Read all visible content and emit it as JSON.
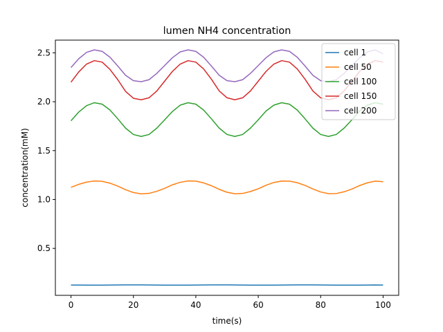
{
  "chart_data": {
    "type": "line",
    "title": "lumen NH4 concentration",
    "xlabel": "time(s)",
    "ylabel": "concentration(mM)",
    "xlim": [
      -5,
      105
    ],
    "ylim": [
      0.02,
      2.63
    ],
    "xticks": [
      0,
      20,
      40,
      60,
      80,
      100
    ],
    "yticks": [
      0.5,
      1.0,
      1.5,
      2.0,
      2.5
    ],
    "xtick_labels": [
      "0",
      "20",
      "40",
      "60",
      "80",
      "100"
    ],
    "ytick_labels": [
      "0.5",
      "1.0",
      "1.5",
      "2.0",
      "2.5"
    ],
    "grid": false,
    "legend_position": "top-right",
    "x": [
      0,
      2.5,
      5,
      7.5,
      10,
      12.5,
      15,
      17.5,
      20,
      22.5,
      25,
      27.5,
      30,
      32.5,
      35,
      37.5,
      40,
      42.5,
      45,
      47.5,
      50,
      52.5,
      55,
      57.5,
      60,
      62.5,
      65,
      67.5,
      70,
      72.5,
      75,
      77.5,
      80,
      82.5,
      85,
      87.5,
      90,
      92.5,
      95,
      97.5,
      100
    ],
    "series": [
      {
        "name": "cell 1",
        "color": "#1f77b4",
        "values": [
          0.125,
          0.125,
          0.124,
          0.124,
          0.124,
          0.125,
          0.126,
          0.127,
          0.127,
          0.127,
          0.126,
          0.125,
          0.124,
          0.124,
          0.124,
          0.124,
          0.125,
          0.126,
          0.127,
          0.127,
          0.127,
          0.126,
          0.125,
          0.124,
          0.124,
          0.124,
          0.124,
          0.125,
          0.126,
          0.127,
          0.127,
          0.127,
          0.126,
          0.125,
          0.124,
          0.124,
          0.124,
          0.124,
          0.125,
          0.126,
          0.125
        ]
      },
      {
        "name": "cell 50",
        "color": "#ff7f0e",
        "values": [
          1.125,
          1.155,
          1.178,
          1.19,
          1.186,
          1.167,
          1.137,
          1.1,
          1.071,
          1.058,
          1.063,
          1.084,
          1.114,
          1.15,
          1.176,
          1.19,
          1.188,
          1.17,
          1.141,
          1.104,
          1.074,
          1.059,
          1.062,
          1.082,
          1.11,
          1.146,
          1.174,
          1.189,
          1.188,
          1.172,
          1.144,
          1.108,
          1.077,
          1.06,
          1.061,
          1.079,
          1.107,
          1.143,
          1.171,
          1.188,
          1.182
        ]
      },
      {
        "name": "cell 100",
        "color": "#2ca02c",
        "values": [
          1.805,
          1.895,
          1.96,
          1.99,
          1.975,
          1.915,
          1.825,
          1.73,
          1.665,
          1.645,
          1.665,
          1.73,
          1.815,
          1.9,
          1.965,
          1.99,
          1.975,
          1.915,
          1.825,
          1.73,
          1.665,
          1.645,
          1.665,
          1.73,
          1.815,
          1.905,
          1.965,
          1.99,
          1.975,
          1.915,
          1.825,
          1.73,
          1.665,
          1.645,
          1.665,
          1.73,
          1.815,
          1.905,
          1.965,
          1.99,
          1.975
        ]
      },
      {
        "name": "cell 150",
        "color": "#d62728",
        "values": [
          2.2,
          2.305,
          2.385,
          2.42,
          2.405,
          2.33,
          2.225,
          2.105,
          2.035,
          2.02,
          2.04,
          2.11,
          2.21,
          2.31,
          2.385,
          2.42,
          2.405,
          2.335,
          2.23,
          2.11,
          2.04,
          2.02,
          2.04,
          2.11,
          2.21,
          2.31,
          2.385,
          2.42,
          2.405,
          2.335,
          2.23,
          2.11,
          2.04,
          2.02,
          2.04,
          2.11,
          2.21,
          2.31,
          2.385,
          2.42,
          2.405
        ]
      },
      {
        "name": "cell 200",
        "color": "#9467bd",
        "values": [
          2.35,
          2.44,
          2.505,
          2.53,
          2.515,
          2.455,
          2.365,
          2.27,
          2.215,
          2.205,
          2.225,
          2.29,
          2.37,
          2.45,
          2.51,
          2.53,
          2.515,
          2.455,
          2.365,
          2.27,
          2.215,
          2.205,
          2.225,
          2.29,
          2.37,
          2.45,
          2.51,
          2.53,
          2.515,
          2.455,
          2.365,
          2.27,
          2.215,
          2.205,
          2.225,
          2.29,
          2.37,
          2.45,
          2.51,
          2.53,
          2.49
        ]
      }
    ]
  }
}
